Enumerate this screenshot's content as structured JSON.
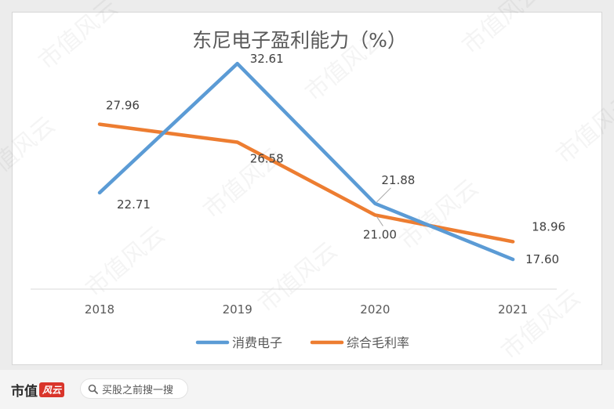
{
  "chart_data": {
    "type": "line",
    "title": "东尼电子盈利能力（%）",
    "categories": [
      "2018",
      "2019",
      "2020",
      "2021"
    ],
    "series": [
      {
        "name": "消费电子",
        "values": [
          22.71,
          32.61,
          21.88,
          17.6
        ],
        "labels": [
          "22.71",
          "32.61",
          "21.88",
          "17.60"
        ],
        "color": "#5b9bd5"
      },
      {
        "name": "综合毛利率",
        "values": [
          27.96,
          26.58,
          21.0,
          18.96
        ],
        "labels": [
          "27.96",
          "26.58",
          "21.00",
          "18.96"
        ],
        "color": "#ed7d31"
      }
    ],
    "ylim": [
      10,
      36
    ],
    "grid": false,
    "legend": "bottom"
  },
  "watermark": "市值风云",
  "footer": {
    "brand": "市值",
    "brand_seal": "风云",
    "search_placeholder": "买股之前搜一搜"
  }
}
